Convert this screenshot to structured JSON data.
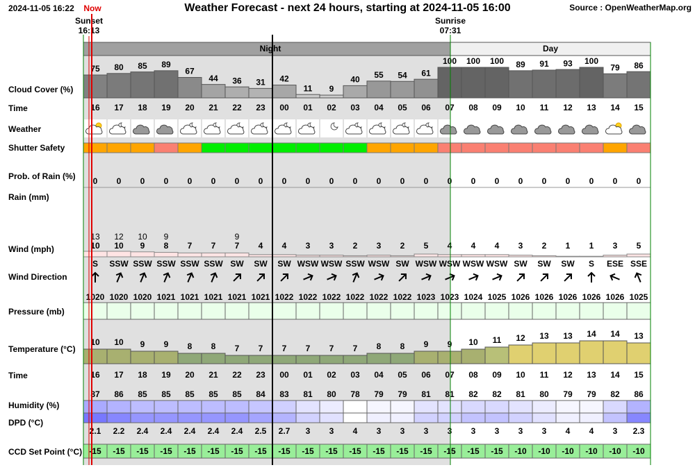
{
  "header": {
    "timestamp": "2024-11-05 16:22",
    "now": "Now",
    "title": "Weather Forecast - next 24 hours, starting at 2024-11-05 16:00",
    "source": "Source : OpenWeatherMap.org"
  },
  "sunset": {
    "label": "Sunset",
    "time": "16:13"
  },
  "sunrise": {
    "label": "Sunrise",
    "time": "07:31"
  },
  "periods": [
    "Night",
    "Day"
  ],
  "row_labels": {
    "cloud_cover": "Cloud Cover (%)",
    "time": "Time",
    "weather": "Weather",
    "shutter_safety": "Shutter Safety",
    "prob_rain": "Prob. of Rain (%)",
    "rain": "Rain (mm)",
    "wind": "Wind (mph)",
    "wind_direction": "Wind Direction",
    "pressure": "Pressure (mb)",
    "temperature": "Temperature (°C)",
    "humidity": "Humidity (%)",
    "dpd": "DPD (°C)",
    "ccd_set_point": "CCD Set Point (°C)"
  },
  "hours": [
    "16",
    "17",
    "18",
    "19",
    "20",
    "21",
    "22",
    "23",
    "00",
    "01",
    "02",
    "03",
    "04",
    "05",
    "06",
    "07",
    "08",
    "09",
    "10",
    "11",
    "12",
    "13",
    "14",
    "15"
  ],
  "cloud_cover": [
    75,
    80,
    85,
    89,
    67,
    44,
    36,
    31,
    42,
    11,
    9,
    40,
    55,
    54,
    61,
    100,
    100,
    100,
    89,
    91,
    93,
    100,
    79,
    86
  ],
  "shutter_safety_colors": [
    "#ffa500",
    "#ffa500",
    "#ffa500",
    "#fa8072",
    "#ffa500",
    "#00ee00",
    "#00ee00",
    "#00ee00",
    "#00ee00",
    "#00ee00",
    "#00ee00",
    "#00ee00",
    "#ffa500",
    "#ffa500",
    "#ffa500",
    "#fa8072",
    "#fa8072",
    "#fa8072",
    "#fa8072",
    "#fa8072",
    "#fa8072",
    "#fa8072",
    "#ffa500",
    "#fa8072"
  ],
  "prob_rain": [
    0,
    0,
    0,
    0,
    0,
    0,
    0,
    0,
    0,
    0,
    0,
    0,
    0,
    0,
    0,
    0,
    0,
    0,
    0,
    0,
    0,
    0,
    0,
    0
  ],
  "wind": [
    10,
    10,
    9,
    8,
    7,
    7,
    7,
    4,
    4,
    3,
    3,
    2,
    3,
    2,
    5,
    4,
    4,
    4,
    3,
    2,
    1,
    1,
    3,
    5
  ],
  "gusts": [
    13,
    12,
    10,
    9,
    null,
    null,
    9,
    null,
    null,
    null,
    null,
    null,
    null,
    null,
    null,
    null,
    null,
    null,
    null,
    null,
    null,
    null,
    null,
    null
  ],
  "wind_direction": [
    "S",
    "SSW",
    "SSW",
    "SSW",
    "SSW",
    "SSW",
    "SW",
    "SW",
    "SW",
    "WSW",
    "WSW",
    "SSW",
    "WSW",
    "SW",
    "WSW",
    "WSW",
    "WSW",
    "WSW",
    "SW",
    "SW",
    "SW",
    "S",
    "ESE",
    "SSE"
  ],
  "pressure": [
    1020,
    1020,
    1020,
    1021,
    1021,
    1021,
    1021,
    1021,
    1022,
    1022,
    1022,
    1022,
    1022,
    1022,
    1023,
    1023,
    1024,
    1025,
    1026,
    1026,
    1026,
    1026,
    1026,
    1025
  ],
  "temperature": [
    10,
    10,
    9,
    9,
    8,
    8,
    7,
    7,
    7,
    7,
    7,
    7,
    8,
    8,
    9,
    9,
    10,
    11,
    12,
    13,
    13,
    14,
    14,
    13
  ],
  "humidity": [
    87,
    86,
    85,
    85,
    85,
    85,
    85,
    84,
    83,
    81,
    80,
    78,
    79,
    79,
    81,
    81,
    82,
    82,
    81,
    80,
    79,
    79,
    82,
    86
  ],
  "dpd": [
    2.1,
    2.2,
    2.4,
    2.4,
    2.4,
    2.4,
    2.4,
    2.5,
    2.7,
    3,
    3,
    4,
    3,
    3,
    3,
    3,
    3,
    3,
    3,
    3,
    4,
    4,
    3,
    2.3
  ],
  "ccd_set_point": [
    -15,
    -15,
    -15,
    -15,
    -15,
    -15,
    -15,
    -15,
    -15,
    -15,
    -15,
    -15,
    -15,
    -15,
    -15,
    -15,
    -15,
    -15,
    -10,
    -10,
    -10,
    -10,
    -10,
    -10
  ]
}
